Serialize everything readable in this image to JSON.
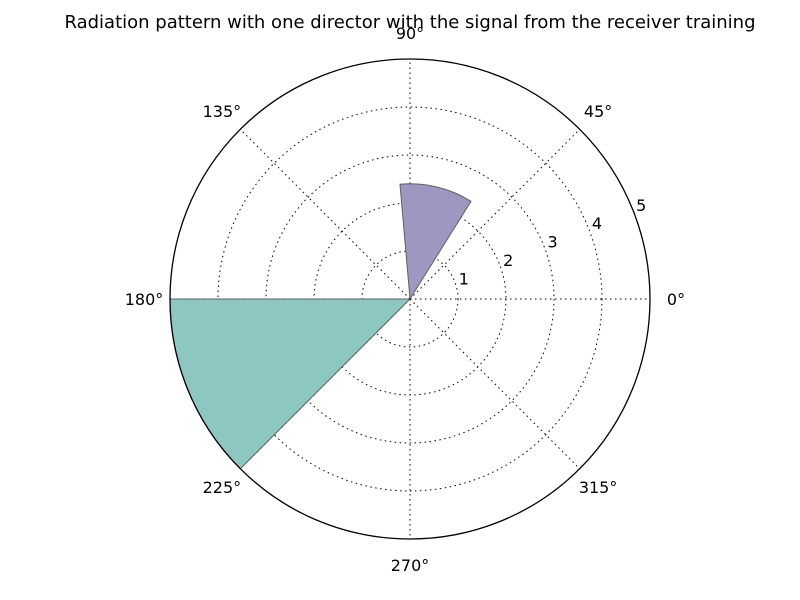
{
  "chart_data": {
    "type": "polar-bar",
    "title": "Radiation pattern with one director with the signal from the receiver training",
    "theta_tick_labels": [
      "0°",
      "45°",
      "90°",
      "135°",
      "180°",
      "225°",
      "270°",
      "315°"
    ],
    "theta_ticks_deg": [
      0,
      45,
      90,
      135,
      180,
      225,
      270,
      315
    ],
    "r_tick_labels": [
      "1",
      "2",
      "3",
      "4",
      "5"
    ],
    "r_ticks": [
      1,
      2,
      3,
      4,
      5
    ],
    "rlim": [
      0,
      5
    ],
    "grid": true,
    "bars": [
      {
        "theta_start_deg": 58,
        "theta_end_deg": 95,
        "r": 2.4,
        "color": "#9e97bf"
      },
      {
        "theta_start_deg": 180,
        "theta_end_deg": 225,
        "r": 5.0,
        "color": "#8ec6c2"
      }
    ]
  }
}
